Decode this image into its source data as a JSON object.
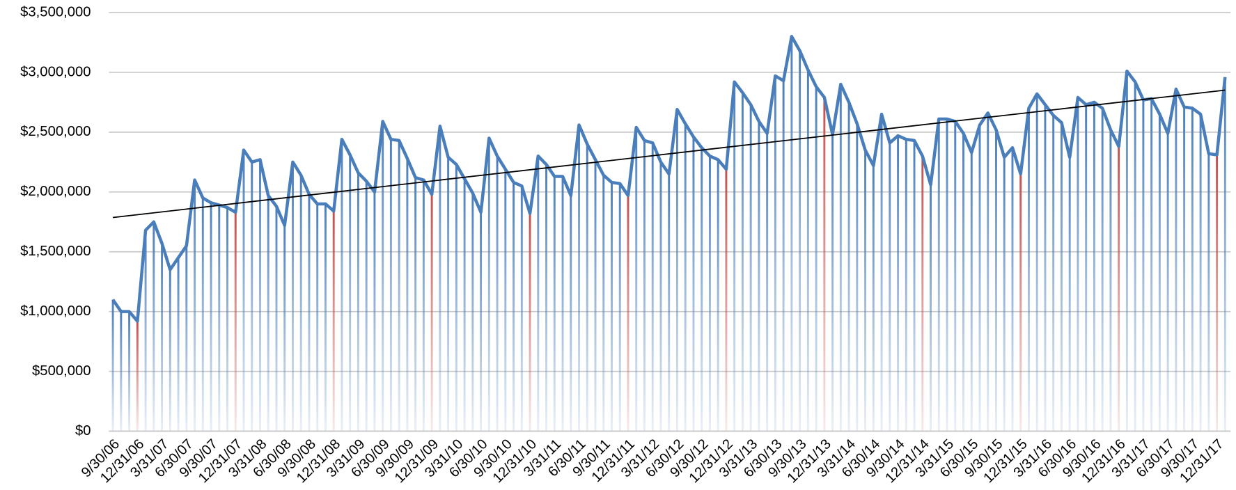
{
  "chart_data": {
    "type": "line",
    "categories": [
      "9/30/06",
      null,
      null,
      "12/31/06",
      null,
      null,
      "3/31/07",
      null,
      null,
      "6/30/07",
      null,
      null,
      "9/30/07",
      null,
      null,
      "12/31/07",
      null,
      null,
      "3/31/08",
      null,
      null,
      "6/30/08",
      null,
      null,
      "9/30/08",
      null,
      null,
      "12/31/08",
      null,
      null,
      "3/31/09",
      null,
      null,
      "6/30/09",
      null,
      null,
      "9/30/09",
      null,
      null,
      "12/31/09",
      null,
      null,
      "3/31/10",
      null,
      null,
      "6/30/10",
      null,
      null,
      "9/30/10",
      null,
      null,
      "12/31/10",
      null,
      null,
      "3/31/11",
      null,
      null,
      "6/30/11",
      null,
      null,
      "9/30/11",
      null,
      null,
      "12/31/11",
      null,
      null,
      "3/31/12",
      null,
      null,
      "6/30/12",
      null,
      null,
      "9/30/12",
      null,
      null,
      "12/31/12",
      null,
      null,
      "3/31/13",
      null,
      null,
      "6/30/13",
      null,
      null,
      "9/30/13",
      null,
      null,
      "12/31/13",
      null,
      null,
      "3/31/14",
      null,
      null,
      "6/30/14",
      null,
      null,
      "9/30/14",
      null,
      null,
      "12/31/14",
      null,
      null,
      "3/31/15",
      null,
      null,
      "6/30/15",
      null,
      null,
      "9/30/15",
      null,
      null,
      "12/31/15",
      null,
      null,
      "3/31/16",
      null,
      null,
      "6/30/16",
      null,
      null,
      "9/30/16",
      null,
      null,
      "12/31/16",
      null,
      null,
      "3/31/17",
      null,
      null,
      "6/30/17",
      null,
      null,
      "9/30/17",
      null,
      null,
      "12/31/17",
      null
    ],
    "series": [
      {
        "color": "#4a7ebb",
        "values": [
          1100000,
          1000000,
          1000000,
          920000,
          1680000,
          1750000,
          1570000,
          1350000,
          1450000,
          1550000,
          2100000,
          1950000,
          1910000,
          1890000,
          1870000,
          1830000,
          2350000,
          2250000,
          2270000,
          1970000,
          1880000,
          1720000,
          2250000,
          2140000,
          1980000,
          1900000,
          1900000,
          1840000,
          2440000,
          2310000,
          2160000,
          2090000,
          2000000,
          2590000,
          2440000,
          2430000,
          2280000,
          2120000,
          2100000,
          1980000,
          2550000,
          2290000,
          2230000,
          2110000,
          1990000,
          1830000,
          2450000,
          2300000,
          2190000,
          2080000,
          2050000,
          1820000,
          2300000,
          2230000,
          2130000,
          2130000,
          1970000,
          2560000,
          2400000,
          2270000,
          2140000,
          2080000,
          2070000,
          1970000,
          2540000,
          2430000,
          2410000,
          2250000,
          2150000,
          2690000,
          2570000,
          2460000,
          2370000,
          2300000,
          2270000,
          2190000,
          2920000,
          2830000,
          2730000,
          2590000,
          2490000,
          2970000,
          2930000,
          3300000,
          3180000,
          3020000,
          2880000,
          2790000,
          2480000,
          2900000,
          2750000,
          2570000,
          2350000,
          2220000,
          2650000,
          2410000,
          2470000,
          2440000,
          2430000,
          2300000,
          2060000,
          2610000,
          2610000,
          2590000,
          2490000,
          2330000,
          2560000,
          2660000,
          2520000,
          2290000,
          2370000,
          2150000,
          2700000,
          2820000,
          2730000,
          2640000,
          2580000,
          2290000,
          2790000,
          2730000,
          2750000,
          2700000,
          2520000,
          2380000,
          3010000,
          2920000,
          2770000,
          2780000,
          2650000,
          2490000,
          2860000,
          2710000,
          2700000,
          2650000,
          2320000,
          2310000,
          2960000
        ]
      }
    ],
    "highlight": {
      "color": "#c0504d",
      "indices": [
        3,
        15,
        27,
        39,
        51,
        63,
        75,
        87,
        99,
        111,
        123,
        135
      ]
    },
    "drop_lines": true,
    "trendline": "linear",
    "trendline_color": "#000000",
    "ylim": [
      0,
      3500000
    ],
    "yticks": [
      {
        "value": 0,
        "label": "$0"
      },
      {
        "value": 500000,
        "label": "$500,000"
      },
      {
        "value": 1000000,
        "label": "$1,000,000"
      },
      {
        "value": 1500000,
        "label": "$1,500,000"
      },
      {
        "value": 2000000,
        "label": "$2,000,000"
      },
      {
        "value": 2500000,
        "label": "$2,500,000"
      },
      {
        "value": 3000000,
        "label": "$3,000,000"
      },
      {
        "value": 3500000,
        "label": "$3,500,000"
      }
    ],
    "grid": true
  }
}
